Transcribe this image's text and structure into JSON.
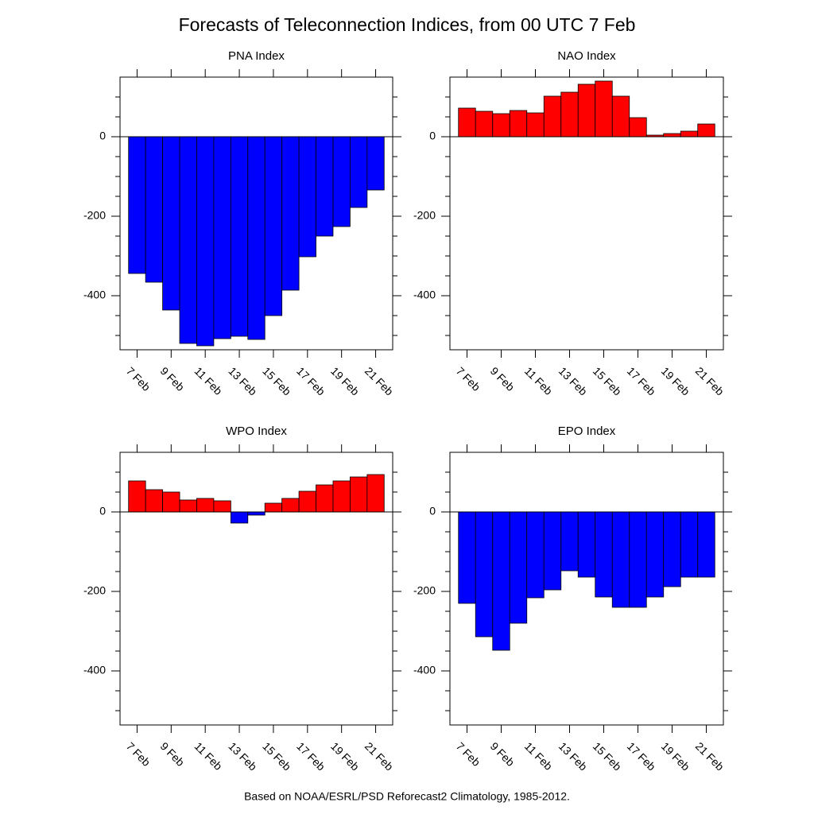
{
  "title": "Forecasts of Teleconnection Indices, from 00 UTC 7 Feb",
  "footnote": "Based on NOAA/ESRL/PSD Reforecast2 Climatology, 1985-2012.",
  "chart_data": [
    {
      "type": "bar",
      "title": "PNA Index",
      "categories": [
        "7 Feb",
        null,
        "9 Feb",
        null,
        "11 Feb",
        null,
        "13 Feb",
        null,
        "15 Feb",
        null,
        "17 Feb",
        null,
        "19 Feb",
        null,
        "21 Feb"
      ],
      "values": [
        -344,
        -366,
        -436,
        -520,
        -526,
        -508,
        -502,
        -510,
        -450,
        -386,
        -302,
        -250,
        -226,
        -178,
        -134
      ],
      "positive_color": "#ff0000",
      "negative_color": "#0000ff",
      "ylim": [
        -536,
        150
      ],
      "yticks": [
        -400,
        -200,
        0
      ],
      "yminorticks": [
        -500,
        -450,
        -350,
        -300,
        -250,
        -150,
        -100,
        -50,
        50,
        100
      ]
    },
    {
      "type": "bar",
      "title": "NAO Index",
      "categories": [
        "7 Feb",
        null,
        "9 Feb",
        null,
        "11 Feb",
        null,
        "13 Feb",
        null,
        "15 Feb",
        null,
        "17 Feb",
        null,
        "19 Feb",
        null,
        "21 Feb"
      ],
      "values": [
        72,
        64,
        58,
        66,
        60,
        102,
        112,
        132,
        140,
        102,
        48,
        4,
        8,
        14,
        32
      ],
      "positive_color": "#ff0000",
      "negative_color": "#0000ff",
      "ylim": [
        -536,
        150
      ],
      "yticks": [
        -400,
        -200,
        0
      ],
      "yminorticks": [
        -500,
        -450,
        -350,
        -300,
        -250,
        -150,
        -100,
        -50,
        50,
        100
      ]
    },
    {
      "type": "bar",
      "title": "WPO Index",
      "categories": [
        "7 Feb",
        null,
        "9 Feb",
        null,
        "11 Feb",
        null,
        "13 Feb",
        null,
        "15 Feb",
        null,
        "17 Feb",
        null,
        "19 Feb",
        null,
        "21 Feb"
      ],
      "values": [
        78,
        56,
        50,
        30,
        34,
        28,
        -28,
        -8,
        22,
        34,
        52,
        68,
        78,
        88,
        94
      ],
      "positive_color": "#ff0000",
      "negative_color": "#0000ff",
      "ylim": [
        -536,
        150
      ],
      "yticks": [
        -400,
        -200,
        0
      ],
      "yminorticks": [
        -500,
        -450,
        -350,
        -300,
        -250,
        -150,
        -100,
        -50,
        50,
        100
      ]
    },
    {
      "type": "bar",
      "title": "EPO Index",
      "categories": [
        "7 Feb",
        null,
        "9 Feb",
        null,
        "11 Feb",
        null,
        "13 Feb",
        null,
        "15 Feb",
        null,
        "17 Feb",
        null,
        "19 Feb",
        null,
        "21 Feb"
      ],
      "values": [
        -230,
        -314,
        -348,
        -280,
        -216,
        -196,
        -148,
        -164,
        -214,
        -240,
        -240,
        -214,
        -188,
        -164,
        -164
      ],
      "positive_color": "#ff0000",
      "negative_color": "#0000ff",
      "ylim": [
        -536,
        150
      ],
      "yticks": [
        -400,
        -200,
        0
      ],
      "yminorticks": [
        -500,
        -450,
        -350,
        -300,
        -250,
        -150,
        -100,
        -50,
        50,
        100
      ]
    }
  ]
}
